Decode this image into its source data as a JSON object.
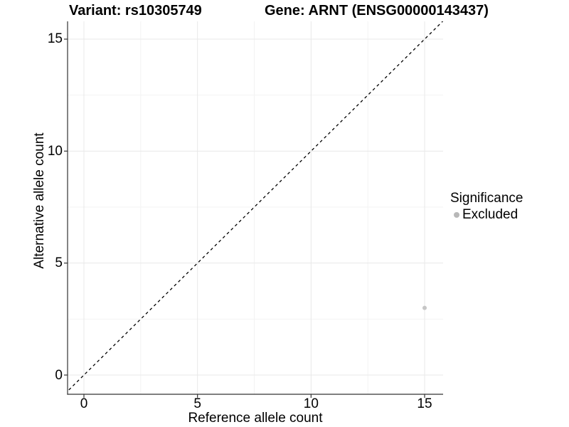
{
  "title": {
    "variant": "Variant: rs10305749",
    "gene": "Gene: ARNT (ENSG00000143437)"
  },
  "chart_data": {
    "type": "scatter",
    "title": "Variant: rs10305749   Gene: ARNT (ENSG00000143437)",
    "xlabel": "Reference allele count",
    "ylabel": "Alternative allele count",
    "x_ticks": [
      0,
      5,
      10,
      15
    ],
    "y_ticks": [
      0,
      5,
      10,
      15
    ],
    "x_minor_ticks": [
      2.5,
      7.5,
      12.5
    ],
    "y_minor_ticks": [
      2.5,
      7.5,
      12.5
    ],
    "xlim": [
      -0.75,
      15.85
    ],
    "ylim": [
      -0.86,
      15.8
    ],
    "grid": "major+minor",
    "points": [
      {
        "x": 15,
        "y": 3,
        "series": "Excluded"
      }
    ],
    "point_color": "#c6c6c6",
    "reference_line": {
      "type": "identity y=x",
      "style": "dashed",
      "color": "#000000"
    },
    "legend": {
      "title": "Significance",
      "position": "right",
      "items": [
        {
          "label": "Excluded",
          "color": "#b8b8b8"
        }
      ]
    }
  },
  "colors": {
    "background": "#ffffff",
    "axis": "#333333",
    "grid_major": "#e8e8e8",
    "grid_minor": "#f3f3f3",
    "text": "#000000"
  }
}
